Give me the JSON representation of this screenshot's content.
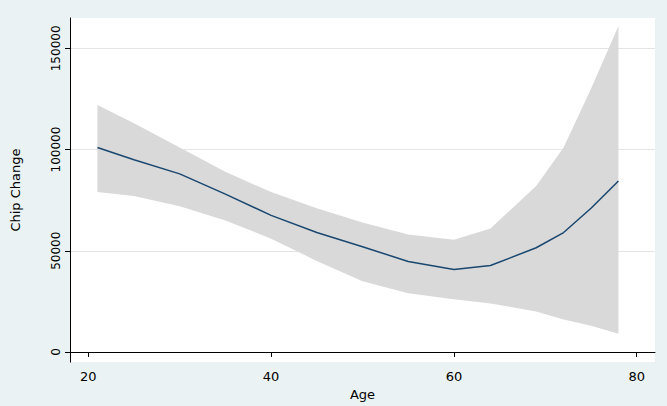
{
  "chart_data": {
    "type": "line",
    "x_label": "Age",
    "y_label": "Chip Change",
    "x": [
      21,
      25,
      30,
      35,
      40,
      45,
      50,
      55,
      60,
      64,
      69,
      72,
      75,
      78
    ],
    "values": [
      101000,
      95000,
      88000,
      78000,
      67500,
      59000,
      52000,
      44700,
      40800,
      42700,
      51500,
      59000,
      71000,
      84500
    ],
    "ci_lower": [
      79000,
      77000,
      72000,
      65000,
      56000,
      45000,
      35000,
      29000,
      26000,
      24000,
      20000,
      16000,
      13000,
      9000
    ],
    "ci_upper": [
      122000,
      113000,
      101000,
      89000,
      79000,
      71000,
      64000,
      58000,
      55500,
      61000,
      82000,
      101000,
      130000,
      161000
    ],
    "color": "#1a476f",
    "xlim": [
      18,
      82
    ],
    "xticks": [
      20,
      40,
      60,
      80
    ],
    "ylim": [
      -5000,
      165000
    ],
    "yticks": [
      0,
      50000,
      100000,
      150000
    ],
    "grid": true
  }
}
